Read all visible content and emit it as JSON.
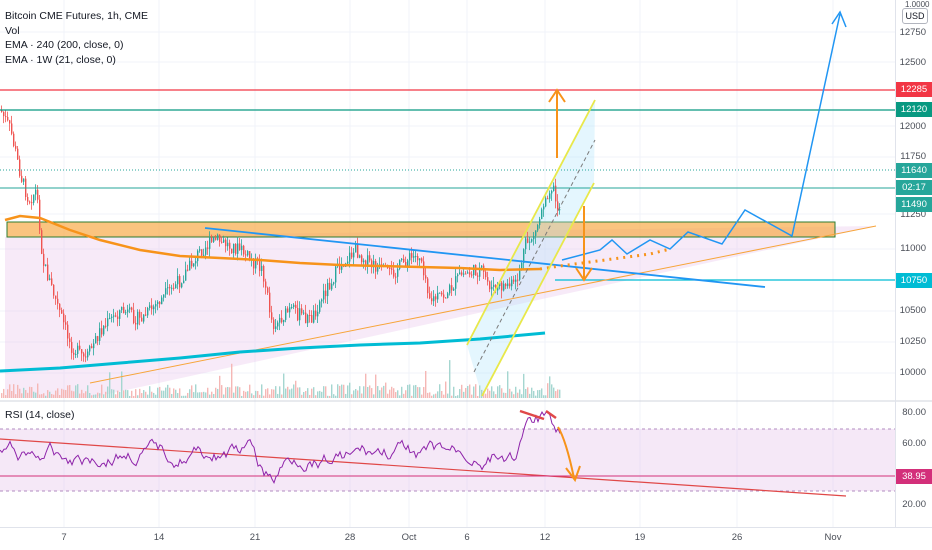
{
  "header": {
    "title": "Bitcoin CME Futures, 1h, CME",
    "indicators": [
      "Vol",
      "EMA · 240 (200, close, 0)",
      "EMA · 1W (21, close, 0)"
    ]
  },
  "currency_button": "USD",
  "top_axis_value": "1.0000",
  "price_axis": {
    "ticks": [
      "12750",
      "12500",
      "12000",
      "11750",
      "11250",
      "11000",
      "10500",
      "10250",
      "10000"
    ],
    "labels": [
      {
        "text": "12285",
        "color": "#f23645",
        "price": 12285
      },
      {
        "text": "12120",
        "color": "#089981",
        "price": 12120
      },
      {
        "text": "11640",
        "color": "#26a69a",
        "price": 11640
      },
      {
        "text": "02:17",
        "color": "#26a69a",
        "price": 11560
      },
      {
        "text": "11490",
        "color": "#26a69a",
        "price": 11490
      },
      {
        "text": "10750",
        "color": "#00bcd4",
        "price": 10750
      }
    ]
  },
  "rsi": {
    "label": "RSI (14, close)",
    "ticks": [
      "80.00",
      "60.00",
      "20.00"
    ],
    "current": "38.95",
    "current_color": "#d32f7a"
  },
  "time_axis": {
    "ticks": [
      "7",
      "14",
      "21",
      "28",
      "Oct",
      "6",
      "12",
      "19",
      "26",
      "Nov"
    ]
  },
  "colors": {
    "ema200": "#00bcd4",
    "ema_weekly": "#f7931a",
    "zone": "#f7931a",
    "channel": "#e8e84a",
    "projection": "#2196f3",
    "down_trend": "#2196f3",
    "rsi_line": "#7b1fa2",
    "rsi_trend": "#e04848",
    "resistance_red": "#f23645",
    "resistance_green": "#089981"
  }
}
